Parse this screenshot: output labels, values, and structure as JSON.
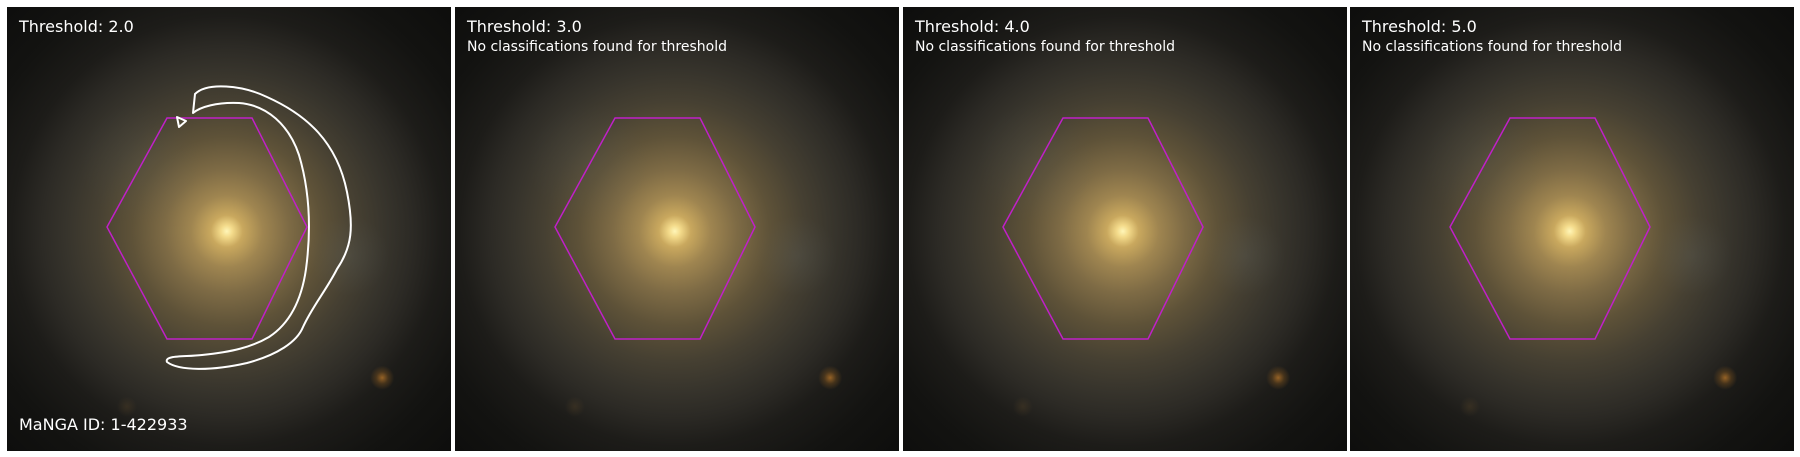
{
  "panels": [
    {
      "threshold_label": "Threshold: 2.0",
      "galaxy_id_label": "MaNGA ID: 1-422933",
      "has_contour": true
    },
    {
      "threshold_label": "Threshold: 3.0",
      "message": "No classifications found for threshold"
    },
    {
      "threshold_label": "Threshold: 4.0",
      "message": "No classifications found for threshold"
    },
    {
      "threshold_label": "Threshold: 5.0",
      "message": "No classifications found for threshold"
    }
  ],
  "colors": {
    "hexagon": "#c020c8",
    "contour": "#ffffff",
    "text": "#ffffff",
    "background": "#ffffff"
  }
}
